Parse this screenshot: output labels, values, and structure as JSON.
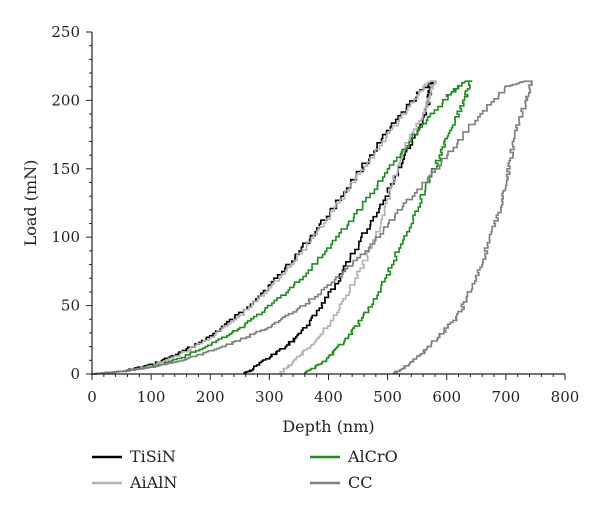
{
  "chart_data": {
    "type": "line",
    "title": "",
    "xlabel": "Depth (nm)",
    "ylabel": "Load (mN)",
    "xlim": [
      0,
      800
    ],
    "ylim": [
      0,
      250
    ],
    "xticks": [
      0,
      100,
      200,
      300,
      400,
      500,
      600,
      700,
      800
    ],
    "yticks": [
      0,
      50,
      100,
      150,
      200,
      250
    ],
    "grid": false,
    "legend_position": "bottom",
    "series": [
      {
        "name": "TiSiN",
        "color": "#000000",
        "loading": [
          [
            0,
            0
          ],
          [
            50,
            2
          ],
          [
            100,
            7
          ],
          [
            150,
            16
          ],
          [
            200,
            28
          ],
          [
            250,
            45
          ],
          [
            300,
            65
          ],
          [
            350,
            90
          ],
          [
            400,
            118
          ],
          [
            450,
            148
          ],
          [
            500,
            178
          ],
          [
            550,
            205
          ],
          [
            575,
            214
          ]
        ],
        "unloading": [
          [
            575,
            214
          ],
          [
            570,
            200
          ],
          [
            560,
            185
          ],
          [
            530,
            160
          ],
          [
            500,
            130
          ],
          [
            460,
            100
          ],
          [
            420,
            70
          ],
          [
            390,
            50
          ],
          [
            360,
            32
          ],
          [
            330,
            20
          ],
          [
            300,
            12
          ],
          [
            270,
            3
          ],
          [
            258,
            0
          ]
        ]
      },
      {
        "name": "AiAlN",
        "color": "#b3b3b3",
        "loading": [
          [
            0,
            0
          ],
          [
            50,
            2
          ],
          [
            100,
            6
          ],
          [
            150,
            15
          ],
          [
            200,
            27
          ],
          [
            250,
            43
          ],
          [
            300,
            63
          ],
          [
            350,
            88
          ],
          [
            400,
            116
          ],
          [
            450,
            146
          ],
          [
            500,
            176
          ],
          [
            550,
            204
          ],
          [
            570,
            214
          ]
        ],
        "unloading": [
          [
            580,
            214
          ],
          [
            570,
            200
          ],
          [
            555,
            185
          ],
          [
            530,
            165
          ],
          [
            510,
            140
          ],
          [
            490,
            110
          ],
          [
            460,
            80
          ],
          [
            430,
            55
          ],
          [
            400,
            35
          ],
          [
            370,
            20
          ],
          [
            340,
            8
          ],
          [
            318,
            0
          ]
        ]
      },
      {
        "name": "AlCrO",
        "color": "#1f8c1f",
        "loading": [
          [
            0,
            0
          ],
          [
            50,
            2
          ],
          [
            100,
            5
          ],
          [
            150,
            12
          ],
          [
            200,
            22
          ],
          [
            250,
            34
          ],
          [
            300,
            50
          ],
          [
            350,
            69
          ],
          [
            400,
            92
          ],
          [
            450,
            120
          ],
          [
            500,
            150
          ],
          [
            550,
            178
          ],
          [
            600,
            203
          ],
          [
            630,
            214
          ]
        ],
        "unloading": [
          [
            640,
            214
          ],
          [
            630,
            200
          ],
          [
            610,
            180
          ],
          [
            590,
            160
          ],
          [
            570,
            140
          ],
          [
            540,
            110
          ],
          [
            510,
            80
          ],
          [
            480,
            55
          ],
          [
            450,
            35
          ],
          [
            420,
            20
          ],
          [
            390,
            8
          ],
          [
            360,
            0
          ]
        ]
      },
      {
        "name": "CC",
        "color": "#7f7f7f",
        "loading": [
          [
            0,
            0
          ],
          [
            50,
            2
          ],
          [
            100,
            5
          ],
          [
            150,
            10
          ],
          [
            200,
            17
          ],
          [
            250,
            25
          ],
          [
            300,
            35
          ],
          [
            350,
            48
          ],
          [
            400,
            65
          ],
          [
            450,
            85
          ],
          [
            500,
            110
          ],
          [
            550,
            135
          ],
          [
            600,
            160
          ],
          [
            650,
            188
          ],
          [
            700,
            210
          ],
          [
            730,
            214
          ]
        ],
        "unloading": [
          [
            745,
            214
          ],
          [
            735,
            200
          ],
          [
            720,
            180
          ],
          [
            710,
            160
          ],
          [
            700,
            140
          ],
          [
            690,
            120
          ],
          [
            675,
            100
          ],
          [
            660,
            80
          ],
          [
            640,
            60
          ],
          [
            620,
            42
          ],
          [
            590,
            28
          ],
          [
            560,
            15
          ],
          [
            530,
            5
          ],
          [
            510,
            0
          ]
        ]
      }
    ]
  }
}
